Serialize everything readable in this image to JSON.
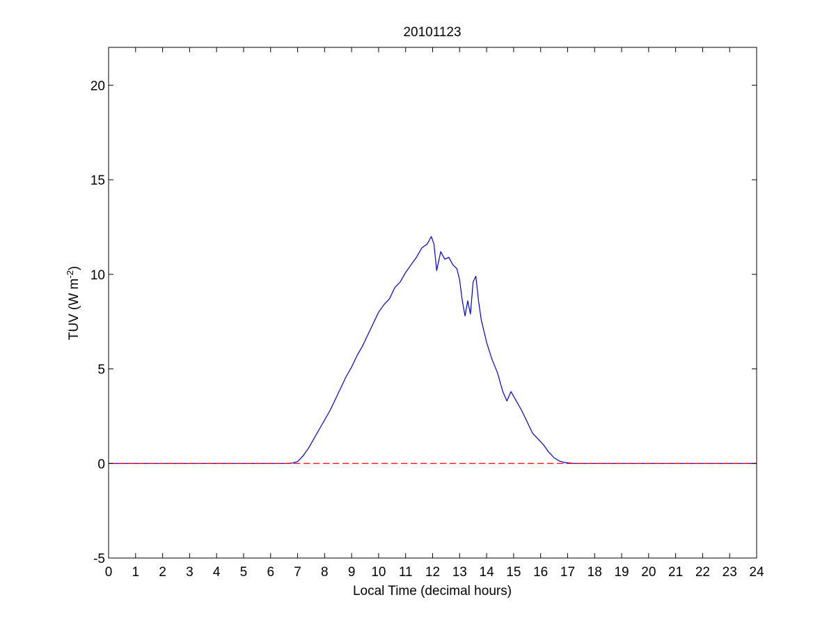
{
  "chart_data": {
    "type": "line",
    "title": "20101123",
    "xlabel": "Local Time (decimal hours)",
    "ylabel_main": "TUV (W m",
    "ylabel_sup": "-2",
    "ylabel_tail": ")",
    "xlim": [
      0,
      24
    ],
    "ylim": [
      -5,
      22
    ],
    "xticks": [
      0,
      1,
      2,
      3,
      4,
      5,
      6,
      7,
      8,
      9,
      10,
      11,
      12,
      13,
      14,
      15,
      16,
      17,
      18,
      19,
      20,
      21,
      22,
      23,
      24
    ],
    "yticks": [
      -5,
      0,
      5,
      10,
      15,
      20
    ],
    "grid": false,
    "box": true,
    "colors": {
      "series": "#0000cc",
      "baseline": "#ff0000",
      "axes": "#000000"
    },
    "series": [
      {
        "style": "solid",
        "x": [
          0,
          6.6,
          6.8,
          7.0,
          7.2,
          7.4,
          7.6,
          7.8,
          8.0,
          8.2,
          8.4,
          8.6,
          8.8,
          9.0,
          9.2,
          9.4,
          9.6,
          9.8,
          10.0,
          10.2,
          10.4,
          10.6,
          10.8,
          11.0,
          11.2,
          11.4,
          11.6,
          11.8,
          11.95,
          12.05,
          12.15,
          12.3,
          12.45,
          12.6,
          12.75,
          12.9,
          13.0,
          13.1,
          13.2,
          13.3,
          13.4,
          13.5,
          13.6,
          13.7,
          13.8,
          14.0,
          14.2,
          14.4,
          14.6,
          14.75,
          14.9,
          15.1,
          15.3,
          15.5,
          15.7,
          15.9,
          16.1,
          16.3,
          16.5,
          16.7,
          16.9,
          17.1,
          17.3,
          18,
          24
        ],
        "y": [
          0,
          0,
          0.02,
          0.1,
          0.4,
          0.8,
          1.3,
          1.8,
          2.3,
          2.8,
          3.4,
          4.0,
          4.6,
          5.1,
          5.7,
          6.2,
          6.8,
          7.4,
          8.0,
          8.4,
          8.7,
          9.3,
          9.6,
          10.1,
          10.5,
          10.9,
          11.4,
          11.6,
          12.0,
          11.6,
          10.2,
          11.2,
          10.8,
          10.9,
          10.5,
          10.3,
          9.7,
          8.6,
          7.8,
          8.6,
          7.9,
          9.6,
          9.9,
          8.6,
          7.6,
          6.4,
          5.5,
          4.8,
          3.8,
          3.3,
          3.8,
          3.3,
          2.8,
          2.2,
          1.6,
          1.3,
          1.0,
          0.6,
          0.3,
          0.12,
          0.05,
          0.02,
          0,
          0,
          0
        ]
      },
      {
        "style": "dashed",
        "x": [
          0,
          24
        ],
        "y": [
          0,
          0
        ]
      }
    ]
  }
}
